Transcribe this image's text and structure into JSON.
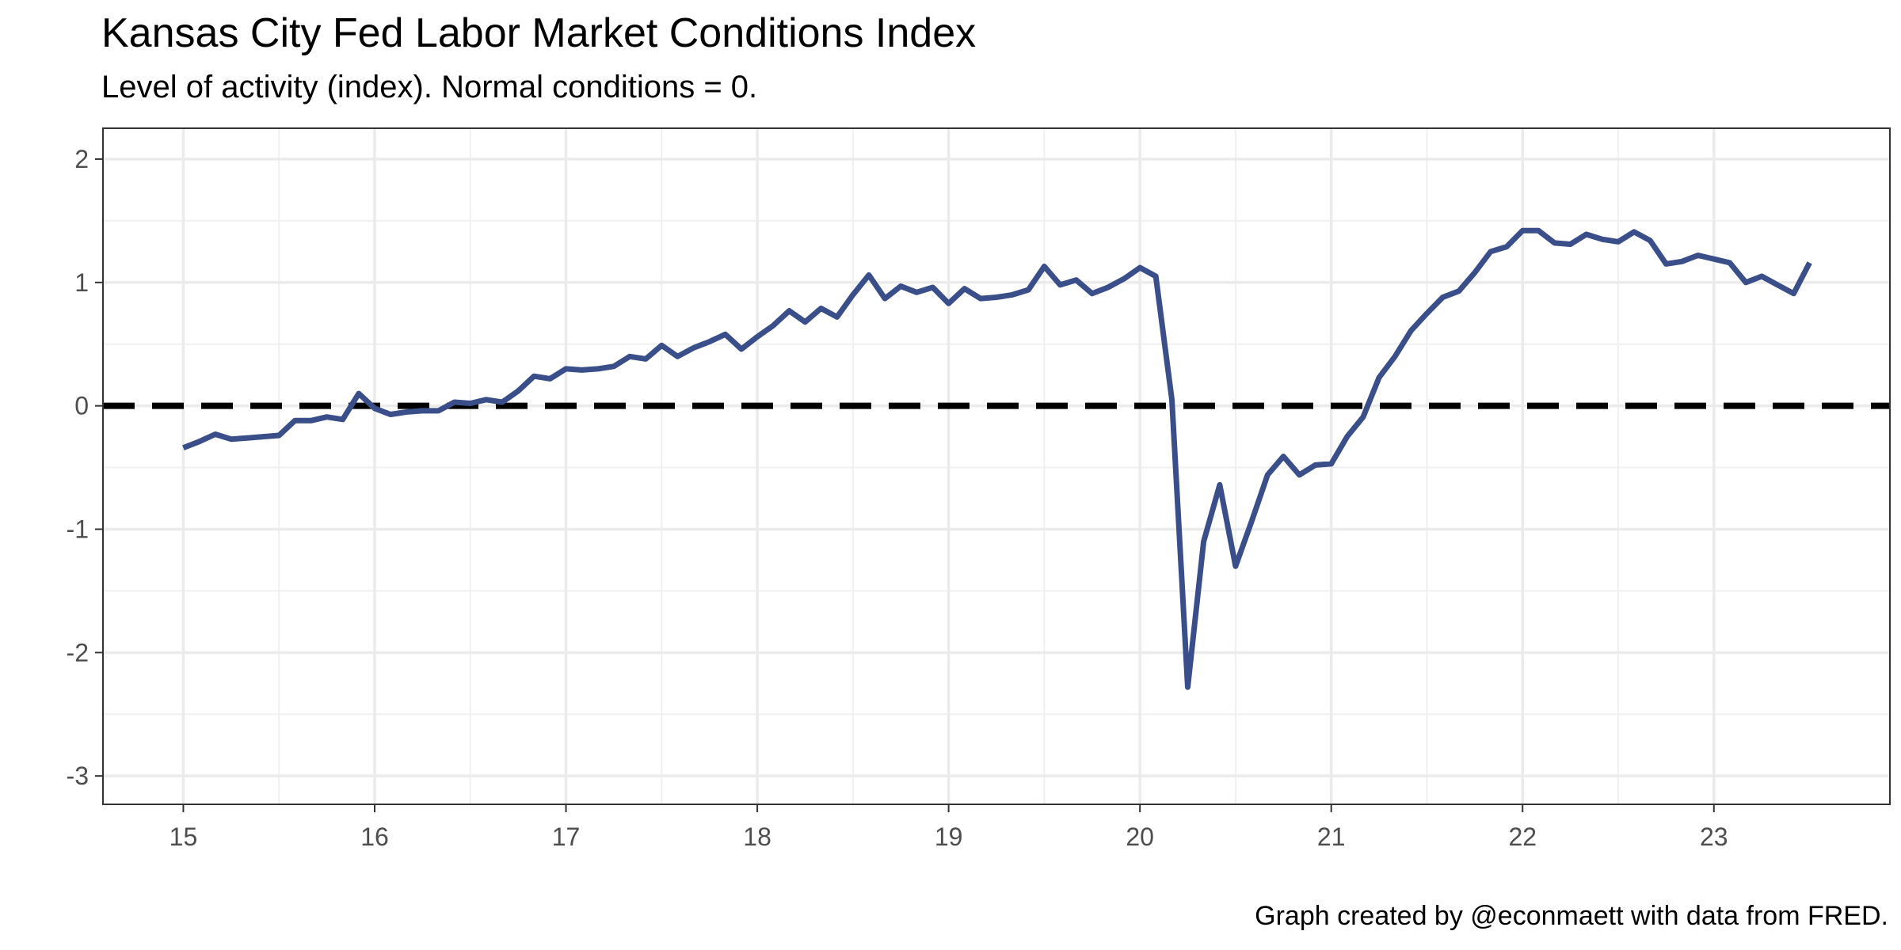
{
  "chart_data": {
    "type": "line",
    "title": "Kansas City Fed Labor Market Conditions Index",
    "subtitle": "Level of activity (index). Normal conditions = 0.",
    "caption": "Graph created by @econmaett with data from FRED.",
    "xlabel": "",
    "ylabel": "",
    "xlim": [
      14.58,
      23.92
    ],
    "ylim": [
      -3.23,
      2.25
    ],
    "x_ticks": [
      15,
      16,
      17,
      18,
      19,
      20,
      21,
      22,
      23
    ],
    "x_tick_labels": [
      "15",
      "16",
      "17",
      "18",
      "19",
      "20",
      "21",
      "22",
      "23"
    ],
    "y_ticks": [
      -3,
      -2,
      -1,
      0,
      1,
      2
    ],
    "y_tick_labels": [
      "-3",
      "-2",
      "-1",
      "0",
      "1",
      "2"
    ],
    "grid": true,
    "reference_line": {
      "y": 0,
      "style": "dashed",
      "color": "#000000"
    },
    "series": [
      {
        "name": "Labor Market Conditions Index",
        "color": "#3a4f8a",
        "x": [
          15.0,
          15.083,
          15.167,
          15.25,
          15.333,
          15.417,
          15.5,
          15.583,
          15.667,
          15.75,
          15.833,
          15.917,
          16.0,
          16.083,
          16.167,
          16.25,
          16.333,
          16.417,
          16.5,
          16.583,
          16.667,
          16.75,
          16.833,
          16.917,
          17.0,
          17.083,
          17.167,
          17.25,
          17.333,
          17.417,
          17.5,
          17.583,
          17.667,
          17.75,
          17.833,
          17.917,
          18.0,
          18.083,
          18.167,
          18.25,
          18.333,
          18.417,
          18.5,
          18.583,
          18.667,
          18.75,
          18.833,
          18.917,
          19.0,
          19.083,
          19.167,
          19.25,
          19.333,
          19.417,
          19.5,
          19.583,
          19.667,
          19.75,
          19.833,
          19.917,
          20.0,
          20.083,
          20.167,
          20.25,
          20.333,
          20.417,
          20.5,
          20.583,
          20.667,
          20.75,
          20.833,
          20.917,
          21.0,
          21.083,
          21.167,
          21.25,
          21.333,
          21.417,
          21.5,
          21.583,
          21.667,
          21.75,
          21.833,
          21.917,
          22.0,
          22.083,
          22.167,
          22.25,
          22.333,
          22.417,
          22.5,
          22.583,
          22.667,
          22.75,
          22.833,
          22.917,
          23.0,
          23.083,
          23.167,
          23.25,
          23.333,
          23.417,
          23.5
        ],
        "values": [
          -0.34,
          -0.29,
          -0.23,
          -0.27,
          -0.26,
          -0.25,
          -0.24,
          -0.12,
          -0.12,
          -0.09,
          -0.11,
          0.1,
          -0.02,
          -0.07,
          -0.05,
          -0.04,
          -0.04,
          0.03,
          0.02,
          0.05,
          0.03,
          0.12,
          0.24,
          0.22,
          0.3,
          0.29,
          0.3,
          0.32,
          0.4,
          0.38,
          0.49,
          0.4,
          0.47,
          0.52,
          0.58,
          0.46,
          0.56,
          0.65,
          0.77,
          0.68,
          0.79,
          0.72,
          0.9,
          1.06,
          0.87,
          0.97,
          0.92,
          0.96,
          0.83,
          0.95,
          0.87,
          0.88,
          0.9,
          0.94,
          1.13,
          0.98,
          1.02,
          0.91,
          0.96,
          1.03,
          1.12,
          1.05,
          0.05,
          -2.28,
          -1.1,
          -0.64,
          -1.3,
          -0.94,
          -0.56,
          -0.41,
          -0.56,
          -0.48,
          -0.47,
          -0.25,
          -0.09,
          0.23,
          0.4,
          0.61,
          0.75,
          0.88,
          0.93,
          1.08,
          1.25,
          1.29,
          1.42,
          1.42,
          1.32,
          1.31,
          1.39,
          1.35,
          1.33,
          1.41,
          1.34,
          1.15,
          1.17,
          1.22,
          1.19,
          1.16,
          1.0,
          1.05,
          0.98,
          0.91,
          1.16
        ]
      }
    ]
  }
}
